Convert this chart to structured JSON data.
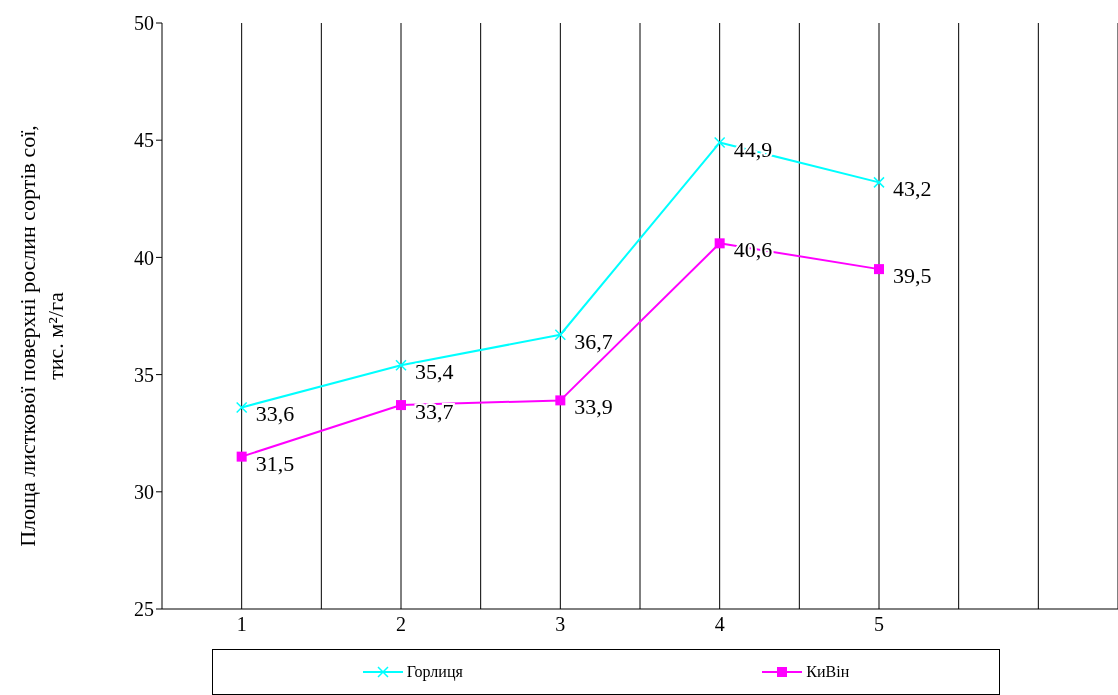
{
  "chart_data": {
    "type": "line",
    "ylabel": "Площа листкової поверхні рослин сортів сої,\nтис. м²/га",
    "categories": [
      "1",
      "2",
      "3",
      "4",
      "5",
      null
    ],
    "series": [
      {
        "name": "Горлиця",
        "color": "#00ffff",
        "marker": "cross",
        "values": [
          33.6,
          35.4,
          36.7,
          44.9,
          43.2,
          null
        ],
        "value_labels": [
          "33,6",
          "35,4",
          "36,7",
          "44,9",
          "43,2",
          null
        ]
      },
      {
        "name": "КиВін",
        "color": "#ff00ff",
        "marker": "square",
        "values": [
          31.5,
          33.7,
          33.9,
          40.6,
          39.5,
          null
        ],
        "value_labels": [
          "31,5",
          "33,7",
          "33,9",
          "40,6",
          "39,5",
          null
        ]
      }
    ],
    "ylim": [
      25,
      50
    ],
    "yticks": [
      25,
      30,
      35,
      40,
      45,
      50
    ],
    "grid": "x",
    "legend": "bottom"
  }
}
